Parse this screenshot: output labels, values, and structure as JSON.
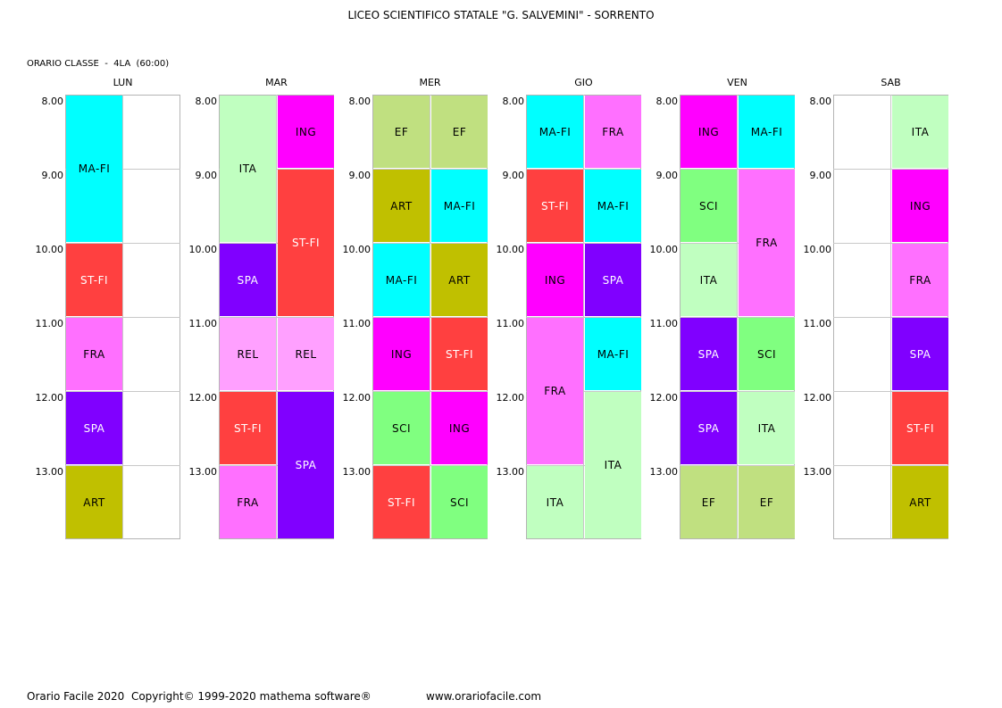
{
  "header": {
    "school": "LICEO SCIENTIFICO STATALE \"G. SALVEMINI\" - SORRENTO",
    "class_info": "ORARIO CLASSE  -  4LA  (60:00)"
  },
  "days": [
    "LUN",
    "MAR",
    "MER",
    "GIO",
    "VEN",
    "SAB"
  ],
  "hours": [
    "8.00",
    "9.00",
    "10.00",
    "11.00",
    "12.00",
    "13.00"
  ],
  "colors": {
    "MA-FI": "#00ffff",
    "ST-FI": "#ff4040",
    "FRA": "#ff70ff",
    "SPA": "#8000ff",
    "ART": "#c0c000",
    "ITA": "#c0ffc0",
    "ING": "#ff00ff",
    "REL": "#ffa0ff",
    "EF": "#c0e080",
    "SCI": "#80ff80"
  },
  "text_colors": {
    "ST-FI": "#ffffff",
    "SPA": "#ffffff"
  },
  "schedule": [
    [
      {
        "subject": "MA-FI",
        "col": 0,
        "start": 0,
        "span": 2
      },
      {
        "subject": "ST-FI",
        "col": 0,
        "start": 2,
        "span": 1
      },
      {
        "subject": "FRA",
        "col": 0,
        "start": 3,
        "span": 1
      },
      {
        "subject": "SPA",
        "col": 0,
        "start": 4,
        "span": 1
      },
      {
        "subject": "ART",
        "col": 0,
        "start": 5,
        "span": 1
      }
    ],
    [
      {
        "subject": "ITA",
        "col": 0,
        "start": 0,
        "span": 2
      },
      {
        "subject": "ING",
        "col": 1,
        "start": 0,
        "span": 1
      },
      {
        "subject": "ST-FI",
        "col": 1,
        "start": 1,
        "span": 2
      },
      {
        "subject": "SPA",
        "col": 0,
        "start": 2,
        "span": 1
      },
      {
        "subject": "REL",
        "col": 0,
        "start": 3,
        "span": 1
      },
      {
        "subject": "REL",
        "col": 1,
        "start": 3,
        "span": 1
      },
      {
        "subject": "ST-FI",
        "col": 0,
        "start": 4,
        "span": 1
      },
      {
        "subject": "SPA",
        "col": 1,
        "start": 4,
        "span": 2
      },
      {
        "subject": "FRA",
        "col": 0,
        "start": 5,
        "span": 1
      }
    ],
    [
      {
        "subject": "EF",
        "col": 0,
        "start": 0,
        "span": 1
      },
      {
        "subject": "EF",
        "col": 1,
        "start": 0,
        "span": 1
      },
      {
        "subject": "ART",
        "col": 0,
        "start": 1,
        "span": 1
      },
      {
        "subject": "MA-FI",
        "col": 1,
        "start": 1,
        "span": 1
      },
      {
        "subject": "MA-FI",
        "col": 0,
        "start": 2,
        "span": 1
      },
      {
        "subject": "ART",
        "col": 1,
        "start": 2,
        "span": 1
      },
      {
        "subject": "ING",
        "col": 0,
        "start": 3,
        "span": 1
      },
      {
        "subject": "ST-FI",
        "col": 1,
        "start": 3,
        "span": 1
      },
      {
        "subject": "SCI",
        "col": 0,
        "start": 4,
        "span": 1
      },
      {
        "subject": "ING",
        "col": 1,
        "start": 4,
        "span": 1
      },
      {
        "subject": "ST-FI",
        "col": 0,
        "start": 5,
        "span": 1
      },
      {
        "subject": "SCI",
        "col": 1,
        "start": 5,
        "span": 1
      }
    ],
    [
      {
        "subject": "MA-FI",
        "col": 0,
        "start": 0,
        "span": 1
      },
      {
        "subject": "FRA",
        "col": 1,
        "start": 0,
        "span": 1
      },
      {
        "subject": "ST-FI",
        "col": 0,
        "start": 1,
        "span": 1
      },
      {
        "subject": "MA-FI",
        "col": 1,
        "start": 1,
        "span": 1
      },
      {
        "subject": "ING",
        "col": 0,
        "start": 2,
        "span": 1
      },
      {
        "subject": "SPA",
        "col": 1,
        "start": 2,
        "span": 1
      },
      {
        "subject": "FRA",
        "col": 0,
        "start": 3,
        "span": 2
      },
      {
        "subject": "MA-FI",
        "col": 1,
        "start": 3,
        "span": 1
      },
      {
        "subject": "ITA",
        "col": 1,
        "start": 4,
        "span": 2
      },
      {
        "subject": "ITA",
        "col": 0,
        "start": 5,
        "span": 1
      }
    ],
    [
      {
        "subject": "ING",
        "col": 0,
        "start": 0,
        "span": 1
      },
      {
        "subject": "MA-FI",
        "col": 1,
        "start": 0,
        "span": 1
      },
      {
        "subject": "SCI",
        "col": 0,
        "start": 1,
        "span": 1
      },
      {
        "subject": "FRA",
        "col": 1,
        "start": 1,
        "span": 2
      },
      {
        "subject": "ITA",
        "col": 0,
        "start": 2,
        "span": 1
      },
      {
        "subject": "SPA",
        "col": 0,
        "start": 3,
        "span": 1
      },
      {
        "subject": "SCI",
        "col": 1,
        "start": 3,
        "span": 1
      },
      {
        "subject": "SPA",
        "col": 0,
        "start": 4,
        "span": 1
      },
      {
        "subject": "ITA",
        "col": 1,
        "start": 4,
        "span": 1
      },
      {
        "subject": "EF",
        "col": 0,
        "start": 5,
        "span": 1
      },
      {
        "subject": "EF",
        "col": 1,
        "start": 5,
        "span": 1
      }
    ],
    [
      {
        "subject": "ITA",
        "col": 1,
        "start": 0,
        "span": 1
      },
      {
        "subject": "ING",
        "col": 1,
        "start": 1,
        "span": 1
      },
      {
        "subject": "FRA",
        "col": 1,
        "start": 2,
        "span": 1
      },
      {
        "subject": "SPA",
        "col": 1,
        "start": 3,
        "span": 1
      },
      {
        "subject": "ST-FI",
        "col": 1,
        "start": 4,
        "span": 1
      },
      {
        "subject": "ART",
        "col": 1,
        "start": 5,
        "span": 1
      }
    ]
  ],
  "footer": {
    "left": "Orario Facile 2020  Copyright© 1999-2020 mathema software®",
    "url": "www.orariofacile.com"
  }
}
